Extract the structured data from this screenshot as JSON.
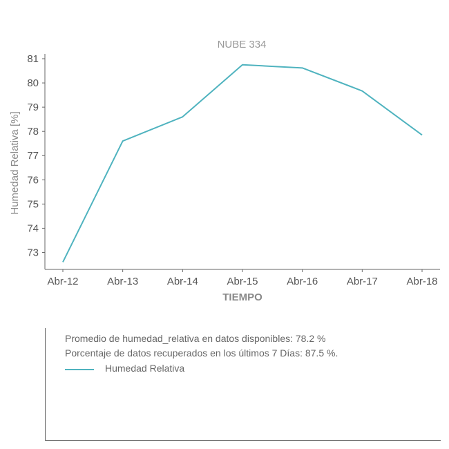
{
  "chart_data": {
    "type": "line",
    "title": "NUBE 334",
    "xlabel": "TIEMPO",
    "ylabel": "Humedad Relativa [%]",
    "categories": [
      "Abr-12",
      "Abr-13",
      "Abr-14",
      "Abr-15",
      "Abr-16",
      "Abr-17",
      "Abr-18"
    ],
    "series": [
      {
        "name": "Humedad Relativa",
        "values": [
          72.6,
          77.6,
          78.6,
          80.75,
          80.62,
          79.67,
          77.85
        ],
        "color": "#4fb3bf"
      }
    ],
    "yticks": [
      "73",
      "74",
      "75",
      "76",
      "77",
      "78",
      "79",
      "80",
      "81"
    ],
    "ylim": [
      72.3,
      81.2
    ],
    "grid": false,
    "legend": "below"
  },
  "info": {
    "line1": "Promedio de humedad_relativa en datos disponibles: 78.2 %",
    "line2": "Porcentaje de datos recuperados en los últimos 7 Días: 87.5 %.",
    "legend_label": "Humedad Relativa"
  }
}
